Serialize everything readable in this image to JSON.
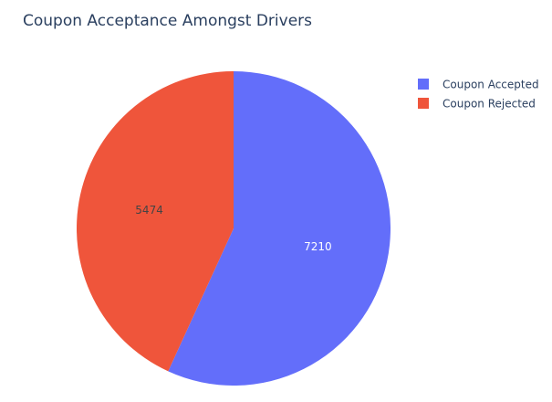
{
  "chart_data": {
    "type": "pie",
    "title": "Coupon Acceptance Amongst Drivers",
    "labels": [
      "Coupon Accepted",
      "Coupon Rejected"
    ],
    "values": [
      7210,
      5474
    ],
    "colors": [
      "#636efa",
      "#ef553b"
    ],
    "label_colors": [
      "#ffffff",
      "#444444"
    ],
    "direction": "clockwise",
    "legend_position": "top-right",
    "show_values_on_slices": true
  }
}
